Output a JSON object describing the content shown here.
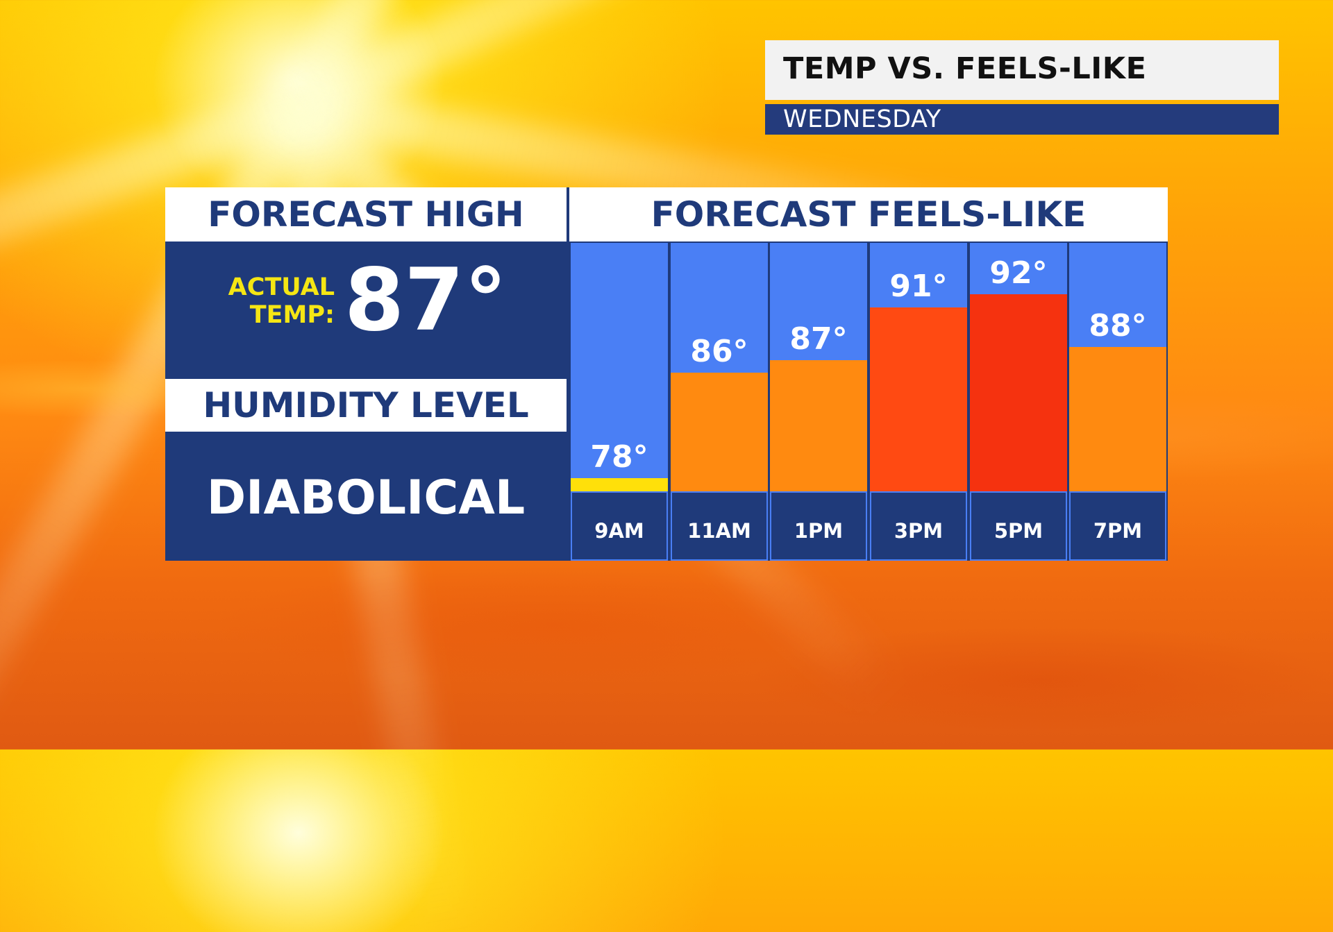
{
  "title": "TEMP VS. FEELS-LIKE",
  "subtitle": "WEDNESDAY",
  "left_panel": {
    "high_header": "FORECAST HIGH",
    "actual_label_line1": "ACTUAL",
    "actual_label_line2": "TEMP:",
    "actual_value": "87°",
    "humidity_header": "HUMIDITY LEVEL",
    "humidity_value": "DIABOLICAL"
  },
  "chart_data": {
    "type": "bar",
    "title": "FORECAST FEELS-LIKE",
    "categories": [
      "9AM",
      "11AM",
      "1PM",
      "3PM",
      "5PM",
      "7PM"
    ],
    "values": [
      78,
      86,
      87,
      91,
      92,
      88
    ],
    "value_labels": [
      "78°",
      "86°",
      "87°",
      "91°",
      "92°",
      "88°"
    ],
    "bar_colors": [
      "#ffe00a",
      "#ff8a10",
      "#ff8a10",
      "#ff4a12",
      "#f5320f",
      "#ff8a10"
    ],
    "column_background": "#4a7ff5",
    "ylim": [
      77,
      96
    ],
    "grid": false,
    "legend": "none"
  },
  "colors": {
    "navy": "#1f3a7a",
    "accent_yellow": "#f5e614",
    "column_blue": "#4a7ff5"
  }
}
